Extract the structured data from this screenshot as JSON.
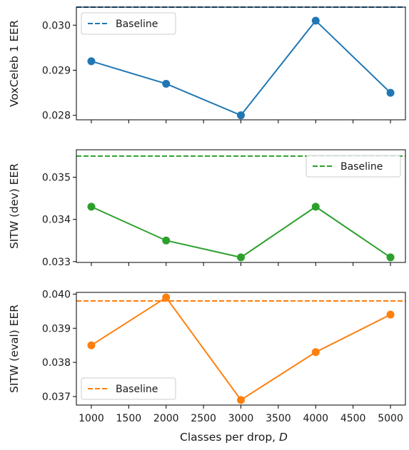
{
  "chart_data": [
    {
      "type": "line",
      "ylabel": "VoxCeleb 1 EER",
      "xlabel": "",
      "x": [
        1000,
        2000,
        3000,
        4000,
        5000
      ],
      "xlim": [
        800,
        5200
      ],
      "ylim": [
        0.0279,
        0.0304
      ],
      "yticks": [
        0.028,
        0.029,
        0.03
      ],
      "ytick_labels": [
        "0.028",
        "0.029",
        "0.030"
      ],
      "series": [
        {
          "name": "",
          "values": [
            0.0292,
            0.0287,
            0.028,
            0.0301,
            0.0285
          ],
          "color": "#1f77b4"
        }
      ],
      "baseline": {
        "name": "Baseline",
        "value": 0.0304,
        "color": "#1f77b4"
      },
      "legend": "top-left",
      "grid": false
    },
    {
      "type": "line",
      "ylabel": "SITW (dev) EER",
      "xlabel": "",
      "x": [
        1000,
        2000,
        3000,
        4000,
        5000
      ],
      "xlim": [
        800,
        5200
      ],
      "ylim": [
        0.03298,
        0.03565
      ],
      "yticks": [
        0.033,
        0.034,
        0.035
      ],
      "ytick_labels": [
        "0.033",
        "0.034",
        "0.035"
      ],
      "series": [
        {
          "name": "",
          "values": [
            0.0343,
            0.0335,
            0.0331,
            0.0343,
            0.0331
          ],
          "color": "#2ca02c"
        }
      ],
      "baseline": {
        "name": "Baseline",
        "value": 0.0355,
        "color": "#2ca02c"
      },
      "legend": "top-right",
      "grid": false
    },
    {
      "type": "line",
      "ylabel": "SITW (eval) EER",
      "xlabel": "Classes per drop, D",
      "x": [
        1000,
        2000,
        3000,
        4000,
        5000
      ],
      "xlim": [
        800,
        5200
      ],
      "ylim": [
        0.03675,
        0.04005
      ],
      "yticks": [
        0.037,
        0.038,
        0.039,
        0.04
      ],
      "ytick_labels": [
        "0.037",
        "0.038",
        "0.039",
        "0.040"
      ],
      "xticks": [
        1000,
        1500,
        2000,
        2500,
        3000,
        3500,
        4000,
        4500,
        5000
      ],
      "xtick_labels": [
        "1000",
        "1500",
        "2000",
        "2500",
        "3000",
        "3500",
        "4000",
        "4500",
        "5000"
      ],
      "series": [
        {
          "name": "",
          "values": [
            0.0385,
            0.0399,
            0.0369,
            0.0383,
            0.0394
          ],
          "color": "#ff7f0e"
        }
      ],
      "baseline": {
        "name": "Baseline",
        "value": 0.0398,
        "color": "#ff7f0e"
      },
      "legend": "bottom-left",
      "grid": false
    }
  ]
}
